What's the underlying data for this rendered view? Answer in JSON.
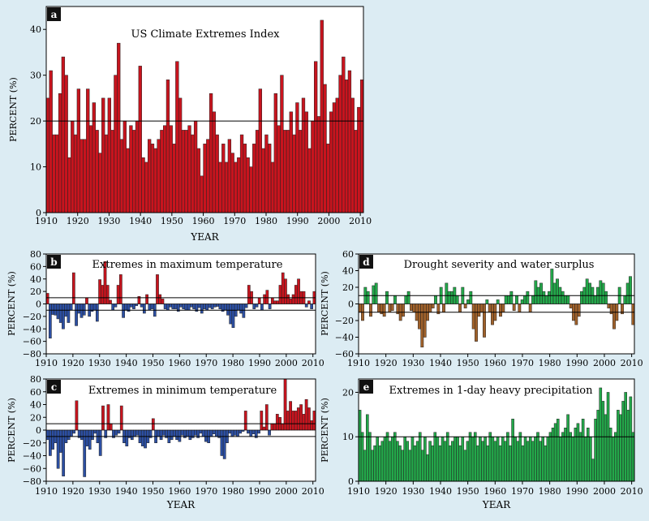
{
  "colors": {
    "background": "#dcecf3",
    "red": "#c8141e",
    "blue": "#2c4fa3",
    "green": "#23a84a",
    "brown": "#a0612a",
    "bar_stroke": "#222222",
    "label_fill": "#111111",
    "label_text": "#ffffff"
  },
  "chart_data": [
    {
      "id": "a",
      "label": "a",
      "type": "bar",
      "title": "US Climate Extremes Index",
      "xlabel": "YEAR",
      "ylabel": "PERCENT (%)",
      "ylim": [
        0,
        45
      ],
      "yticks": [
        0,
        10,
        20,
        30,
        40
      ],
      "xlim": [
        1910,
        2011
      ],
      "xticks": [
        1910,
        1920,
        1930,
        1940,
        1950,
        1960,
        1970,
        1980,
        1990,
        2000,
        2010
      ],
      "reference_lines": [
        20
      ],
      "color_mode": "single",
      "color": "#c8141e",
      "years": [
        1910,
        2011
      ],
      "values": [
        25,
        31,
        17,
        17,
        26,
        34,
        30,
        12,
        20,
        17,
        27,
        16,
        16,
        27,
        19,
        24,
        18,
        13,
        25,
        17,
        25,
        18,
        30,
        37,
        16,
        20,
        14,
        19,
        18,
        20,
        32,
        12,
        11,
        16,
        15,
        14,
        16,
        18,
        19,
        29,
        19,
        15,
        33,
        25,
        18,
        18,
        19,
        17,
        20,
        14,
        8,
        15,
        16,
        26,
        22,
        17,
        11,
        15,
        11,
        16,
        13,
        11,
        12,
        17,
        15,
        12,
        10,
        15,
        18,
        27,
        14,
        17,
        15,
        11,
        26,
        19,
        30,
        18,
        18,
        22,
        17,
        24,
        18,
        25,
        22,
        14,
        20,
        33,
        21,
        42,
        28,
        15,
        22,
        24,
        25,
        30,
        34,
        29,
        31,
        25,
        18,
        23,
        29
      ]
    },
    {
      "id": "b",
      "label": "b",
      "type": "bar",
      "title": "Extremes in maximum temperature",
      "xlabel": "",
      "ylabel": "PERCENT (%)",
      "ylim": [
        -80,
        80
      ],
      "yticks": [
        -80,
        -60,
        -40,
        -20,
        0,
        20,
        40,
        60,
        80
      ],
      "xlim": [
        1910,
        2011
      ],
      "xticks": [
        1910,
        1920,
        1930,
        1940,
        1950,
        1960,
        1970,
        1980,
        1990,
        2000,
        2010
      ],
      "reference_lines": [
        10,
        -10
      ],
      "color_mode": "sign",
      "color_pos": "#c8141e",
      "color_neg": "#2c4fa3",
      "years": [
        1910,
        2011
      ],
      "values": [
        17,
        -55,
        -17,
        -18,
        -24,
        -30,
        -40,
        -20,
        -30,
        -10,
        50,
        -35,
        -15,
        -22,
        -18,
        10,
        -20,
        -12,
        -10,
        -28,
        39,
        30,
        68,
        30,
        6,
        -10,
        -5,
        30,
        47,
        -22,
        -10,
        -12,
        -5,
        -8,
        -3,
        12,
        -5,
        -15,
        15,
        -10,
        -8,
        -20,
        47,
        15,
        8,
        -8,
        -10,
        -5,
        -8,
        -8,
        -12,
        -5,
        -8,
        -10,
        -10,
        -5,
        -8,
        -12,
        -6,
        -15,
        -8,
        -10,
        -6,
        -8,
        -5,
        -4,
        -8,
        -12,
        -10,
        -18,
        -32,
        -38,
        -20,
        -10,
        -15,
        -22,
        -6,
        30,
        20,
        -8,
        -5,
        10,
        -10,
        15,
        22,
        -8,
        10,
        5,
        5,
        30,
        50,
        40,
        15,
        8,
        15,
        30,
        40,
        20,
        20,
        -5,
        5,
        -8,
        20
      ]
    },
    {
      "id": "c",
      "label": "c",
      "type": "bar",
      "title": "Extremes in minimum temperature",
      "xlabel": "YEAR",
      "ylabel": "PERCENT (%)",
      "ylim": [
        -80,
        80
      ],
      "yticks": [
        -80,
        -60,
        -40,
        -20,
        0,
        20,
        40,
        60,
        80
      ],
      "xlim": [
        1910,
        2011
      ],
      "xticks": [
        1910,
        1920,
        1930,
        1940,
        1950,
        1960,
        1970,
        1980,
        1990,
        2000,
        2010
      ],
      "reference_lines": [
        10,
        -10
      ],
      "color_mode": "sign",
      "color_pos": "#c8141e",
      "color_neg": "#2c4fa3",
      "years": [
        1910,
        2011
      ],
      "values": [
        -15,
        -40,
        -30,
        -20,
        -60,
        -35,
        -72,
        -20,
        -15,
        -10,
        -5,
        46,
        -12,
        -15,
        -73,
        -25,
        -30,
        -15,
        -5,
        -20,
        -40,
        38,
        -12,
        40,
        10,
        -12,
        -8,
        -5,
        38,
        -20,
        -25,
        -12,
        -15,
        -10,
        -8,
        -20,
        -25,
        -28,
        -20,
        -12,
        18,
        -20,
        -10,
        -15,
        -8,
        -12,
        -20,
        -15,
        -10,
        -15,
        -18,
        -8,
        -12,
        -10,
        -15,
        -12,
        -8,
        -12,
        -5,
        -10,
        -18,
        -20,
        -10,
        -6,
        -10,
        -12,
        -40,
        -45,
        -20,
        -5,
        -10,
        -8,
        -10,
        -5,
        -2,
        30,
        -5,
        -10,
        -6,
        -12,
        -5,
        30,
        5,
        40,
        -8,
        10,
        10,
        25,
        20,
        10,
        80,
        30,
        45,
        30,
        30,
        35,
        40,
        25,
        48,
        35,
        15,
        30
      ]
    },
    {
      "id": "d",
      "label": "d",
      "type": "bar",
      "title": "Drought severity and water surplus",
      "xlabel": "",
      "ylabel": "PERCENT (%)",
      "ylim": [
        -60,
        60
      ],
      "yticks": [
        -60,
        -40,
        -20,
        0,
        20,
        40,
        60
      ],
      "xlim": [
        1910,
        2011
      ],
      "xticks": [
        1910,
        1920,
        1930,
        1940,
        1950,
        1960,
        1970,
        1980,
        1990,
        2000,
        2010
      ],
      "reference_lines": [
        10,
        -10
      ],
      "color_mode": "sign",
      "color_pos": "#23a84a",
      "color_neg": "#a0612a",
      "years": [
        1910,
        2011
      ],
      "values": [
        -10,
        -20,
        20,
        15,
        -15,
        22,
        25,
        -10,
        -12,
        -15,
        15,
        -10,
        -8,
        10,
        -12,
        -20,
        -15,
        10,
        15,
        -8,
        -10,
        -20,
        -30,
        -52,
        -40,
        -20,
        -10,
        -5,
        10,
        -12,
        20,
        -10,
        25,
        15,
        15,
        20,
        10,
        -10,
        20,
        -5,
        5,
        15,
        -30,
        -45,
        -15,
        -10,
        -40,
        5,
        -10,
        -25,
        -20,
        5,
        -15,
        -10,
        10,
        10,
        15,
        -8,
        10,
        -10,
        5,
        10,
        15,
        -10,
        10,
        28,
        20,
        25,
        15,
        10,
        15,
        42,
        25,
        30,
        20,
        15,
        10,
        10,
        -5,
        -20,
        -25,
        -15,
        15,
        20,
        30,
        25,
        20,
        10,
        20,
        28,
        25,
        15,
        -5,
        -12,
        -30,
        -20,
        20,
        -12,
        10,
        25,
        33,
        -25
      ]
    },
    {
      "id": "e",
      "label": "e",
      "type": "bar",
      "title": "Extremes in 1-day heavy precipitation",
      "xlabel": "YEAR",
      "ylabel": "PERCENT (%)",
      "ylim": [
        0,
        23
      ],
      "yticks": [
        0,
        10,
        20
      ],
      "xlim": [
        1910,
        2011
      ],
      "xticks": [
        1910,
        1920,
        1930,
        1940,
        1950,
        1960,
        1970,
        1980,
        1990,
        2000,
        2010
      ],
      "reference_lines": [
        10
      ],
      "color_mode": "single",
      "color": "#23a84a",
      "years": [
        1910,
        2011
      ],
      "values": [
        16,
        11,
        7,
        15,
        11,
        7,
        8,
        10,
        8,
        9,
        10,
        11,
        9,
        10,
        11,
        9,
        8,
        7,
        10,
        9,
        7,
        10,
        8,
        9,
        11,
        7,
        10,
        6,
        9,
        8,
        11,
        10,
        8,
        10,
        9,
        11,
        8,
        9,
        10,
        10,
        8,
        10,
        7,
        9,
        11,
        10,
        11,
        8,
        10,
        9,
        10,
        8,
        11,
        10,
        9,
        10,
        8,
        10,
        9,
        11,
        8,
        14,
        10,
        9,
        11,
        8,
        10,
        9,
        10,
        9,
        10,
        11,
        9,
        10,
        8,
        10,
        11,
        12,
        13,
        14,
        10,
        11,
        12,
        15,
        11,
        10,
        12,
        13,
        11,
        14,
        10,
        12,
        10,
        5,
        14,
        16,
        21,
        18,
        15,
        20,
        12,
        10,
        11,
        16,
        15,
        18,
        20,
        16,
        19,
        11
      ]
    }
  ]
}
